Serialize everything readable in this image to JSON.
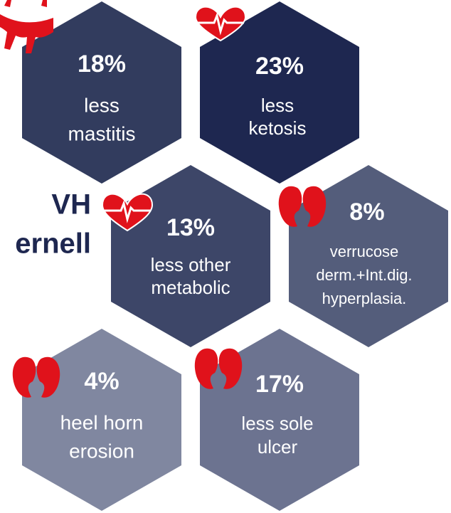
{
  "side_text": [
    "VH",
    "ernell"
  ],
  "cells": [
    {
      "value": "18%",
      "lines": [
        "less",
        "mastitis"
      ]
    },
    {
      "value": "23%",
      "lines": [
        "less",
        "ketosis"
      ]
    },
    {
      "value": "13%",
      "lines": [
        "less other",
        "metabolic"
      ]
    },
    {
      "value": "8%",
      "lines": [
        "verrucose",
        "derm.+Int.dig.",
        "hyperplasia."
      ]
    },
    {
      "value": "4%",
      "lines": [
        "heel horn",
        "erosion"
      ]
    },
    {
      "value": "17%",
      "lines": [
        "less sole",
        "ulcer"
      ]
    }
  ]
}
